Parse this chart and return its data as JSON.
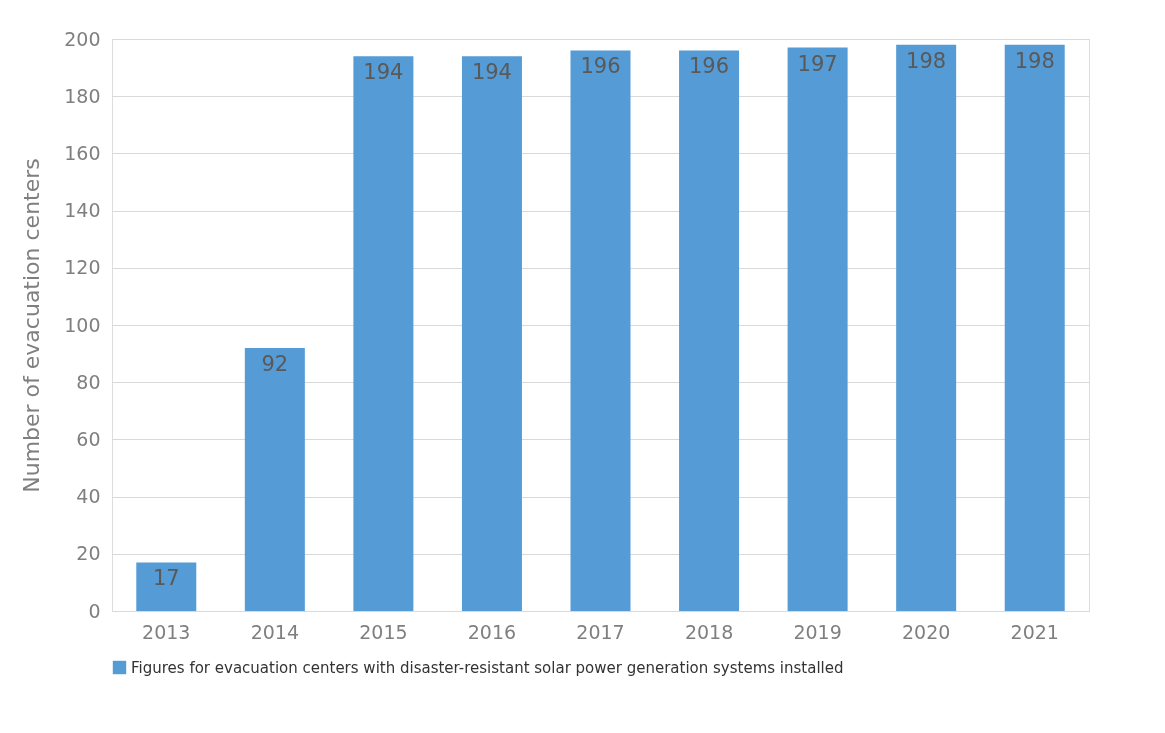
{
  "chart_data": {
    "type": "bar",
    "ylabel": "Number of evacuation centers",
    "categories": [
      "2013",
      "2014",
      "2015",
      "2016",
      "2017",
      "2018",
      "2019",
      "2020",
      "2021"
    ],
    "series": [
      {
        "name": "Figures for evacuation centers with disaster-resistant solar power generation systems installed",
        "color": "#559bd6",
        "values": [
          17,
          92,
          194,
          194,
          196,
          196,
          197,
          198,
          198
        ]
      }
    ],
    "ylim": [
      0,
      200
    ],
    "yticks": [
      0,
      20,
      40,
      60,
      80,
      100,
      120,
      140,
      160,
      180,
      200
    ],
    "grid": "y",
    "legend": "bottom",
    "data_labels": true
  }
}
